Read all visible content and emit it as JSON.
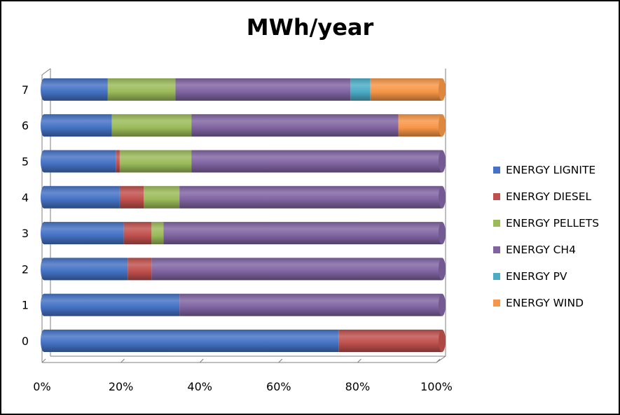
{
  "chart_data": {
    "type": "bar",
    "orientation": "horizontal",
    "stacked": "percent",
    "title": "MWh/year",
    "xlabel": "",
    "ylabel": "",
    "categories": [
      "0",
      "1",
      "2",
      "3",
      "4",
      "5",
      "6",
      "7"
    ],
    "xlim": [
      0,
      100
    ],
    "x_ticks": [
      "0%",
      "20%",
      "40%",
      "60%",
      "80%",
      "100%"
    ],
    "legend_position": "right",
    "grid": false,
    "series": [
      {
        "name": "ENERGY LIGNITE",
        "color": "#4472C4",
        "values": [
          74,
          34,
          21,
          20,
          19,
          18,
          17,
          16
        ]
      },
      {
        "name": "ENERGY DIESEL",
        "color": "#C0504D",
        "values": [
          26,
          0,
          6,
          7,
          6,
          1,
          0,
          0
        ]
      },
      {
        "name": "ENERGY PELLETS",
        "color": "#9BBB59",
        "values": [
          0,
          0,
          0,
          3,
          9,
          18,
          20,
          17
        ]
      },
      {
        "name": "ENERGY CH4",
        "color": "#8064A2",
        "values": [
          0,
          66,
          73,
          70,
          66,
          63,
          52,
          44
        ]
      },
      {
        "name": "ENERGY PV",
        "color": "#4BACC6",
        "values": [
          0,
          0,
          0,
          0,
          0,
          0,
          0,
          5
        ]
      },
      {
        "name": "ENERGY WIND",
        "color": "#F79646",
        "values": [
          0,
          0,
          0,
          0,
          0,
          0,
          11,
          18
        ]
      }
    ]
  }
}
